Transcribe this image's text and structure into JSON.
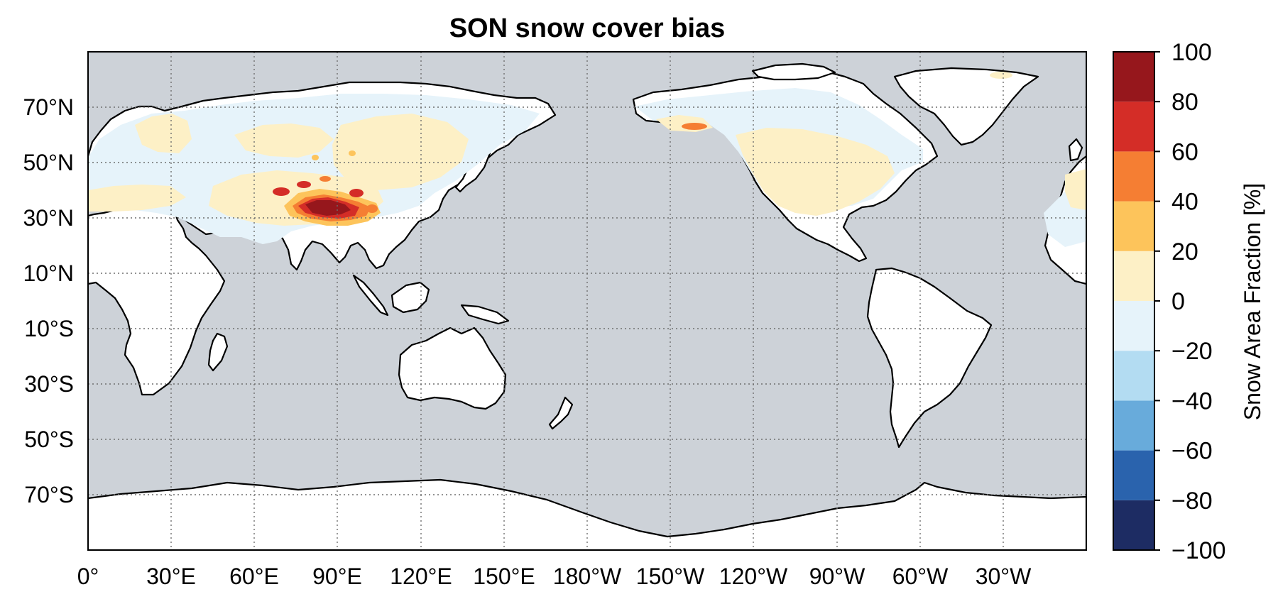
{
  "title": "SON snow cover bias",
  "colors": {
    "ocean": "#cdd2d8",
    "land": "#ffffff",
    "bias_neg_0_20": "#e6f3fa",
    "bias_pos_0_20": "#fdf0c6",
    "bias_pos_20_40": "#fdc45b",
    "bias_pos_40_60": "#f57e33",
    "bias_pos_60_80": "#d42d27",
    "bias_pos_80_100": "#96171c"
  },
  "longitude_ticks": [
    "0°",
    "30°E",
    "60°E",
    "90°E",
    "120°E",
    "150°E",
    "180°W",
    "150°W",
    "120°W",
    "90°W",
    "60°W",
    "30°W"
  ],
  "latitude_ticks": [
    "70°N",
    "50°N",
    "30°N",
    "10°N",
    "10°S",
    "30°S",
    "50°S",
    "70°S"
  ],
  "colorbar": {
    "label": "Snow Area Fraction [%]",
    "tick_labels": [
      "100",
      "80",
      "60",
      "40",
      "20",
      "0",
      "−20",
      "−40",
      "−60",
      "−80",
      "−100"
    ],
    "levels": [
      -100,
      -80,
      -60,
      -40,
      -20,
      0,
      20,
      40,
      60,
      80,
      100
    ],
    "colors": [
      "#1d2c63",
      "#2a63ad",
      "#68abdb",
      "#b3dcf2",
      "#e6f3fa",
      "#fdf0c6",
      "#fdc45b",
      "#f57e33",
      "#d42d27",
      "#96171c"
    ]
  }
}
